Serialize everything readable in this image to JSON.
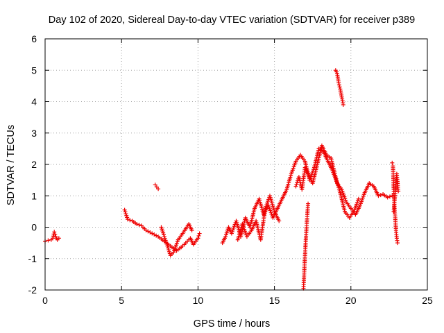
{
  "chart_data": {
    "type": "scatter",
    "title": "Day 102 of 2020, Sidereal Day-to-day VTEC variation (SDTVAR) for receiver p389",
    "xlabel": "GPS time / hours",
    "ylabel": "SDTVAR / TECUs",
    "xlim": [
      0,
      25
    ],
    "ylim": [
      -2,
      6
    ],
    "xticks": [
      0,
      5,
      10,
      15,
      20,
      25
    ],
    "yticks": [
      -2,
      -1,
      0,
      1,
      2,
      3,
      4,
      5,
      6
    ],
    "xtick_labels": [
      "0",
      "5",
      "10",
      "15",
      "20",
      "25"
    ],
    "ytick_labels": [
      "-2",
      "-1",
      "0",
      "1",
      "2",
      "3",
      "4",
      "5",
      "6"
    ],
    "grid": true,
    "marker": "plus",
    "color": "#ee0000",
    "series": [
      {
        "name": "p389",
        "segments": [
          {
            "x": [
              0.0,
              0.2,
              0.4,
              0.5,
              0.6,
              0.7,
              0.8,
              0.9
            ],
            "y": [
              -0.45,
              -0.42,
              -0.4,
              -0.35,
              -0.15,
              -0.3,
              -0.4,
              -0.35
            ]
          },
          {
            "x": [
              5.2,
              5.4,
              5.7,
              6.0,
              6.3,
              6.6,
              7.0,
              7.4,
              7.8,
              8.2,
              8.6,
              9.0,
              9.3,
              9.5,
              9.7,
              10.0,
              10.1
            ],
            "y": [
              0.55,
              0.25,
              0.2,
              0.1,
              0.05,
              -0.1,
              -0.2,
              -0.3,
              -0.45,
              -0.6,
              -0.75,
              -0.6,
              -0.45,
              -0.35,
              -0.55,
              -0.35,
              -0.2
            ]
          },
          {
            "x": [
              7.2,
              7.3,
              7.4
            ],
            "y": [
              1.35,
              1.28,
              1.22
            ]
          },
          {
            "x": [
              7.6,
              7.8,
              8.0,
              8.2,
              8.4,
              8.7,
              9.0,
              9.2,
              9.4,
              9.6
            ],
            "y": [
              0.0,
              -0.3,
              -0.6,
              -0.9,
              -0.8,
              -0.4,
              -0.2,
              -0.05,
              0.1,
              -0.1
            ]
          },
          {
            "x": [
              11.6,
              11.8,
              12.0,
              12.2,
              12.5,
              12.8,
              13.1,
              13.4,
              13.7,
              14.0,
              14.3,
              14.6,
              14.9,
              15.2,
              15.5,
              15.8,
              16.1,
              16.4,
              16.7,
              17.0,
              17.3,
              17.6,
              17.9,
              18.2,
              18.5,
              18.8,
              19.1,
              19.4,
              19.7,
              20.0,
              20.3,
              20.6,
              20.9,
              21.2,
              21.5,
              21.8,
              22.1,
              22.4,
              22.7
            ],
            "y": [
              -0.5,
              -0.3,
              0.0,
              -0.2,
              0.2,
              -0.3,
              0.3,
              0.0,
              0.6,
              0.9,
              0.4,
              0.7,
              0.3,
              0.6,
              0.9,
              1.2,
              1.7,
              2.1,
              2.3,
              2.1,
              1.5,
              1.9,
              2.5,
              2.4,
              2.1,
              1.8,
              1.4,
              1.2,
              0.8,
              0.6,
              0.4,
              0.7,
              1.1,
              1.4,
              1.3,
              1.0,
              1.05,
              0.95,
              1.0
            ]
          },
          {
            "x": [
              12.6,
              12.9,
              13.2,
              13.5,
              13.8,
              14.1,
              14.4,
              14.7,
              15.0,
              15.3
            ],
            "y": [
              -0.4,
              0.1,
              -0.3,
              -0.1,
              0.2,
              -0.4,
              0.6,
              1.0,
              0.5,
              0.2
            ]
          },
          {
            "x": [
              16.4,
              16.6,
              16.8,
              17.0,
              17.2,
              17.5,
              17.8,
              18.1,
              18.4,
              18.7,
              19.0,
              19.3,
              19.6,
              19.9,
              20.2,
              20.5
            ],
            "y": [
              1.3,
              1.6,
              1.2,
              1.9,
              1.7,
              1.4,
              2.0,
              2.6,
              2.3,
              2.2,
              1.6,
              1.1,
              0.5,
              0.3,
              0.5,
              0.9
            ]
          },
          {
            "x": [
              16.9,
              16.95,
              17.0,
              17.05,
              17.1,
              17.15,
              17.2
            ],
            "y": [
              -1.95,
              -1.4,
              -0.9,
              -0.4,
              0.0,
              0.4,
              0.75
            ]
          },
          {
            "x": [
              19.0,
              19.1,
              19.2,
              19.3,
              19.4,
              19.5
            ],
            "y": [
              5.0,
              4.9,
              4.6,
              4.4,
              4.15,
              3.9
            ]
          },
          {
            "x": [
              22.7,
              22.75,
              22.8,
              22.85,
              22.9,
              22.95,
              23.0,
              23.05
            ],
            "y": [
              2.05,
              1.95,
              1.2,
              0.6,
              0.3,
              -0.1,
              -0.35,
              -0.5
            ]
          },
          {
            "x": [
              22.8,
              23.0,
              23.1
            ],
            "y": [
              0.5,
              1.7,
              1.15
            ]
          }
        ]
      }
    ]
  }
}
